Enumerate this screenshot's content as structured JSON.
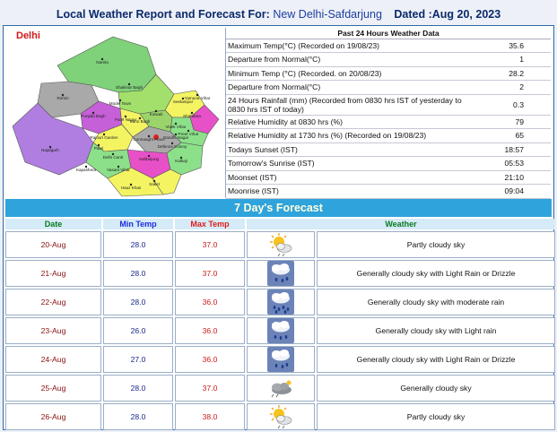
{
  "header": {
    "label": "Local Weather Report and Forecast For:",
    "station": "New Delhi-Safdarjung",
    "dated": "Dated :Aug 20, 2023"
  },
  "map": {
    "title": "Delhi",
    "districts": [
      "Narela",
      "Rohini",
      "Shalimar Bagh",
      "Model Town",
      "Seelampur",
      "Yamuna Vihar",
      "Punjabi Bagh",
      "Patel Nagar",
      "Karol Bagh",
      "Kotwali",
      "Shahdara",
      "Vivek Vihar",
      "Preet Vihar",
      "Gandhi Nagar",
      "Connaught Place",
      "Defence Colony",
      "Rajouri Garden",
      "Patel",
      "Delhi Cantt",
      "Vasant Vihar",
      "Najafgarh",
      "Kapashera",
      "Safdarjung",
      "Saket",
      "Kalkaji",
      "Hauz Khas"
    ]
  },
  "past24": {
    "title": "Past 24 Hours Weather Data",
    "rows": [
      {
        "label": "Maximum Temp(°C) (Recorded on 19/08/23)",
        "value": "35.6"
      },
      {
        "label": "Departure from Normal(°C)",
        "value": "1"
      },
      {
        "label": "Minimum Temp (°C) (Recorded. on 20/08/23)",
        "value": "28.2"
      },
      {
        "label": "Departure from Normal(°C)",
        "value": "2"
      },
      {
        "label": "24 Hours Rainfall (mm) (Recorded from 0830 hrs IST of yesterday to 0830 hrs IST of today)",
        "value": "0.3"
      },
      {
        "label": "Relative Humidity at 0830 hrs (%)",
        "value": "79"
      },
      {
        "label": "Relative Humidity at 1730 hrs (%) (Recorded on 19/08/23)",
        "value": "65"
      },
      {
        "label": "Todays Sunset (IST)",
        "value": "18:57"
      },
      {
        "label": "Tomorrow's Sunrise (IST)",
        "value": "05:53"
      },
      {
        "label": "Moonset (IST)",
        "value": "21:10"
      },
      {
        "label": "Moonrise (IST)",
        "value": "09:04"
      }
    ]
  },
  "forecast": {
    "title": "7 Day's Forecast",
    "headers": {
      "date": "Date",
      "min": "Min Temp",
      "max": "Max Temp",
      "weather": "Weather"
    },
    "rows": [
      {
        "date": "20-Aug",
        "min": "28.0",
        "max": "37.0",
        "icon": "partly-cloudy-icon",
        "weather": "Partly cloudy sky"
      },
      {
        "date": "21-Aug",
        "min": "28.0",
        "max": "37.0",
        "icon": "drizzle-icon",
        "weather": "Generally cloudy sky with Light Rain or Drizzle"
      },
      {
        "date": "22-Aug",
        "min": "28.0",
        "max": "36.0",
        "icon": "moderate-rain-icon",
        "weather": "Generally cloudy sky with moderate rain"
      },
      {
        "date": "23-Aug",
        "min": "26.0",
        "max": "36.0",
        "icon": "light-rain-icon",
        "weather": "Generally cloudy sky with Light rain"
      },
      {
        "date": "24-Aug",
        "min": "27.0",
        "max": "36.0",
        "icon": "drizzle-icon",
        "weather": "Generally cloudy sky with Light Rain or Drizzle"
      },
      {
        "date": "25-Aug",
        "min": "28.0",
        "max": "37.0",
        "icon": "cloudy-icon",
        "weather": "Generally cloudy sky"
      },
      {
        "date": "26-Aug",
        "min": "28.0",
        "max": "38.0",
        "icon": "partly-cloudy-icon",
        "weather": "Partly cloudy sky"
      }
    ]
  }
}
